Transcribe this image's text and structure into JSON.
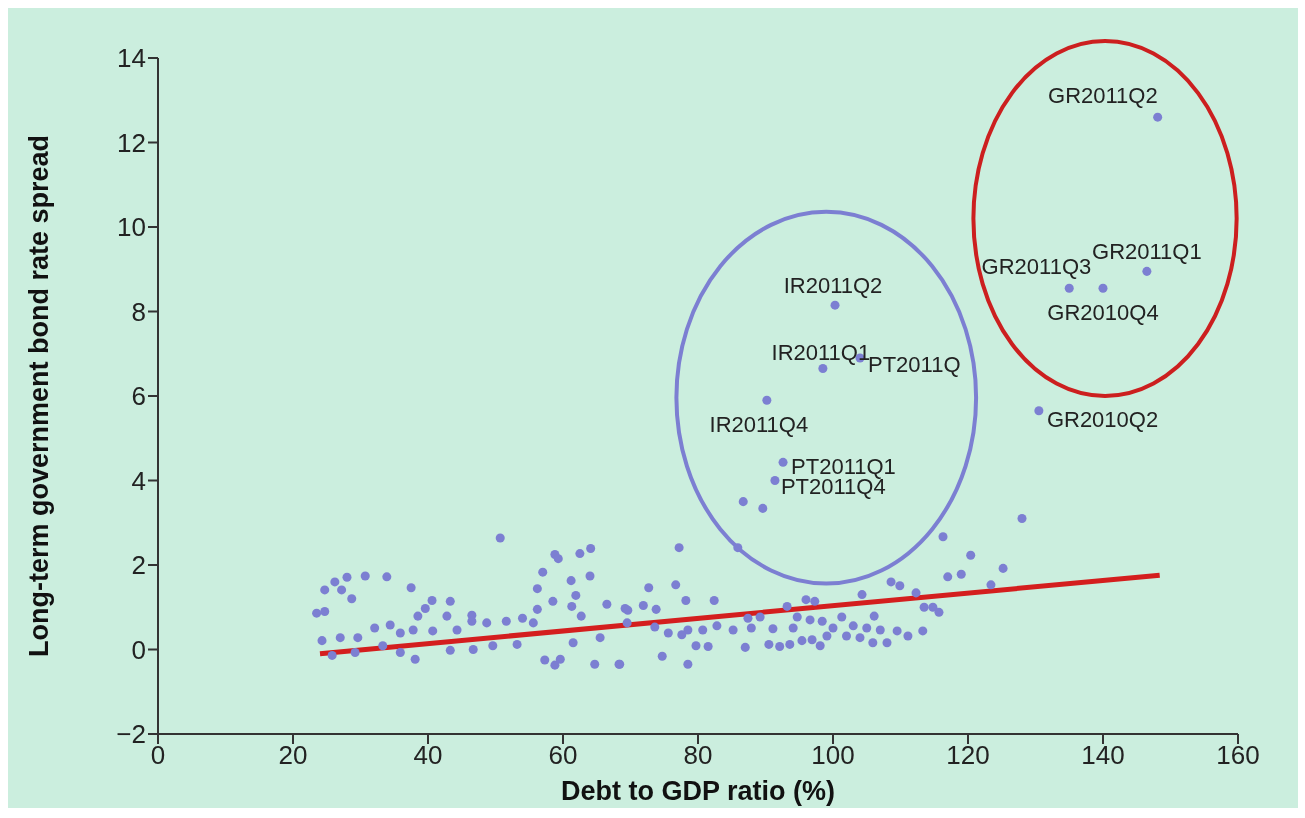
{
  "chart_data": {
    "type": "scatter",
    "xlabel": "Debt to GDP ratio (%)",
    "ylabel": "Long-term government bond rate spread",
    "xlim": [
      0,
      160
    ],
    "ylim": [
      -2,
      14
    ],
    "xticks": [
      0,
      20,
      40,
      60,
      80,
      100,
      120,
      140,
      160
    ],
    "yticks": [
      -2,
      0,
      2,
      4,
      6,
      8,
      10,
      12,
      14
    ],
    "grid": false,
    "series": [
      {
        "color": "#7c7fd2",
        "x": [
          148.1,
          146.5,
          135,
          140,
          130.5,
          100.3,
          98.5,
          104,
          90.2,
          92.6,
          91.4,
          86.7,
          89.6,
          50.7,
          58.8,
          59.3,
          62.5,
          64.1,
          57,
          64,
          61.2,
          56.2,
          58.5,
          61.9,
          61.3,
          56.2,
          66.5,
          69.2,
          62.7,
          26.2,
          28,
          30.7,
          33.9,
          24.7,
          27.2,
          28.7,
          37.5,
          23.5,
          24.7,
          40.6,
          39.6,
          43.3,
          38.5,
          46.5,
          46.5,
          42.8,
          32.1,
          34.4,
          24.3,
          27,
          29.6,
          35.9,
          37.8,
          40.7,
          44.3,
          48.7,
          51.6,
          54,
          55.6,
          25.8,
          29.2,
          35.9,
          38.1,
          43.3,
          46.7,
          57.3,
          58.8,
          59.6,
          64.7,
          68.3,
          65.5,
          61.5,
          53.2,
          49.6,
          33.3,
          69.5,
          77.2,
          85.9,
          116.3,
          120.4,
          125.2,
          117,
          119,
          123.4,
          72.7,
          76.7,
          78.2,
          82.4,
          71.9,
          69.6,
          73.8,
          108.6,
          109.9,
          104.3,
          112.3,
          96,
          97.3,
          113.5,
          114.8,
          115.7,
          106.1,
          101.3,
          94.7,
          93.2,
          89.2,
          87.4,
          98.4,
          96.6,
          91.1,
          94.1,
          87.9,
          85.2,
          82.8,
          80.7,
          78.5,
          75.6,
          77.6,
          73.6,
          113.3,
          111.1,
          109.5,
          107,
          105,
          103,
          100,
          102,
          104,
          99.1,
          96.9,
          95.4,
          98.1,
          93.6,
          92.1,
          90.5,
          87,
          81.5,
          79.7,
          74.7,
          78.5,
          68.4,
          105.9,
          108,
          128
        ],
        "values": [
          12.6,
          8.95,
          8.55,
          8.55,
          5.65,
          8.15,
          6.65,
          6.9,
          5.9,
          4.43,
          4,
          3.5,
          3.34,
          2.64,
          2.25,
          2.15,
          2.27,
          2.39,
          1.83,
          1.74,
          1.63,
          1.44,
          1.14,
          1.28,
          1.02,
          0.95,
          1.07,
          0.97,
          0.79,
          1.6,
          1.71,
          1.74,
          1.72,
          1.41,
          1.41,
          1.2,
          1.46,
          0.86,
          0.9,
          1.16,
          0.97,
          1.14,
          0.79,
          0.81,
          0.67,
          0.79,
          0.51,
          0.58,
          0.21,
          0.28,
          0.28,
          0.39,
          0.46,
          0.44,
          0.46,
          0.63,
          0.67,
          0.74,
          0.63,
          -0.14,
          -0.07,
          -0.07,
          -0.23,
          -0.02,
          0,
          -0.25,
          -0.37,
          -0.23,
          -0.35,
          -0.35,
          0.28,
          0.16,
          0.12,
          0.09,
          0.09,
          0.63,
          2.41,
          2.41,
          2.67,
          2.23,
          1.92,
          1.72,
          1.78,
          1.53,
          1.46,
          1.53,
          1.16,
          1.16,
          1.04,
          0.93,
          0.95,
          1.6,
          1.51,
          1.3,
          1.34,
          1.18,
          1.14,
          1,
          1,
          0.88,
          0.79,
          0.77,
          0.77,
          1.02,
          0.77,
          0.74,
          0.67,
          0.7,
          0.49,
          0.51,
          0.51,
          0.46,
          0.56,
          0.46,
          0.46,
          0.39,
          0.35,
          0.53,
          0.44,
          0.32,
          0.44,
          0.46,
          0.51,
          0.56,
          0.51,
          0.32,
          0.28,
          0.32,
          0.23,
          0.21,
          0.09,
          0.12,
          0.07,
          0.12,
          0.05,
          0.07,
          0.09,
          -0.16,
          -0.35,
          -0.35,
          0.16,
          0.16,
          3.1
        ]
      },
      {
        "type": "line",
        "color": "#d41e1e",
        "x": [
          24,
          148.4
        ],
        "values": [
          -0.1,
          1.76
        ]
      }
    ],
    "annotations": [
      {
        "text": "GR2011Q2",
        "x": 148.1,
        "y": 12.6
      },
      {
        "text": "GR2011Q1",
        "x": 146.5,
        "y": 8.95
      },
      {
        "text": "GR2011Q3",
        "x": 135,
        "y": 8.55
      },
      {
        "text": "GR2010Q4",
        "x": 140,
        "y": 8.55
      },
      {
        "text": "GR2010Q2",
        "x": 130.5,
        "y": 5.65
      },
      {
        "text": "IR2011Q2",
        "x": 100.3,
        "y": 8.15
      },
      {
        "text": "IR2011Q1",
        "x": 98.5,
        "y": 6.65
      },
      {
        "text": "PT2011Q",
        "x": 104,
        "y": 6.9
      },
      {
        "text": "IR2011Q4",
        "x": 90.2,
        "y": 5.9
      },
      {
        "text": "PT2011Q1",
        "x": 92.6,
        "y": 4.43
      },
      {
        "text": "PT2011Q4",
        "x": 91.4,
        "y": 4
      }
    ]
  }
}
